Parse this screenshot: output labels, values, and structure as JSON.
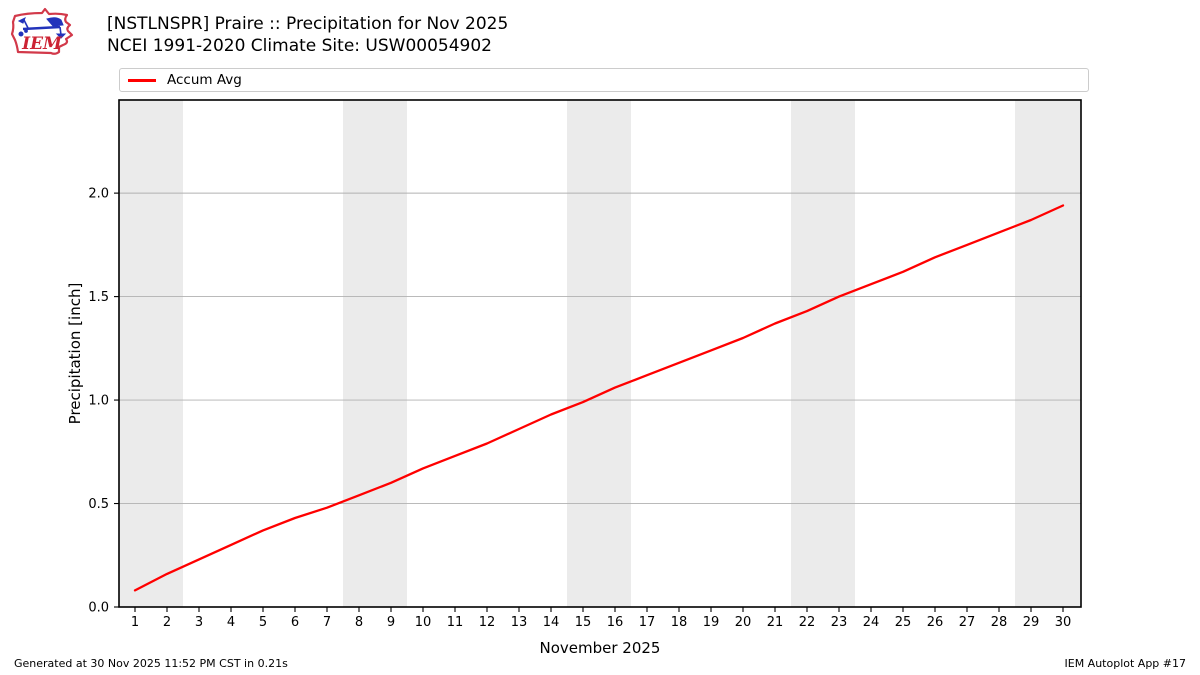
{
  "header": {
    "title_line1": "[NSTLNSPR] Praire :: Precipitation for Nov 2025",
    "title_line2": "NCEI 1991-2020 Climate Site: USW00054902",
    "logo_text": "IEM"
  },
  "legend": {
    "label": "Accum Avg",
    "line_color": "#ff0000"
  },
  "footer": {
    "left": "Generated at 30 Nov 2025 11:52 PM CST in 0.21s",
    "right": "IEM Autoplot App #17"
  },
  "chart_data": {
    "type": "line",
    "title": "[NSTLNSPR] Praire :: Precipitation for Nov 2025 — NCEI 1991-2020 Climate Site: USW00054902",
    "xlabel": "November 2025",
    "ylabel": "Precipitation [inch]",
    "x": [
      1,
      2,
      3,
      4,
      5,
      6,
      7,
      8,
      9,
      10,
      11,
      12,
      13,
      14,
      15,
      16,
      17,
      18,
      19,
      20,
      21,
      22,
      23,
      24,
      25,
      26,
      27,
      28,
      29,
      30
    ],
    "series": [
      {
        "name": "Accum Avg",
        "color": "#ff0000",
        "values": [
          0.08,
          0.16,
          0.23,
          0.3,
          0.37,
          0.43,
          0.48,
          0.54,
          0.6,
          0.67,
          0.73,
          0.79,
          0.86,
          0.93,
          0.99,
          1.06,
          1.12,
          1.18,
          1.24,
          1.3,
          1.37,
          1.43,
          1.5,
          1.56,
          1.62,
          1.69,
          1.75,
          1.81,
          1.87,
          1.94
        ]
      }
    ],
    "xlim": [
      0.5,
      30.5625
    ],
    "ylim": [
      0,
      2.45
    ],
    "yticks": [
      0.0,
      0.5,
      1.0,
      1.5,
      2.0
    ],
    "ytick_labels": [
      "0.0",
      "0.5",
      "1.0",
      "1.5",
      "2.0"
    ],
    "xticks": [
      1,
      2,
      3,
      4,
      5,
      6,
      7,
      8,
      9,
      10,
      11,
      12,
      13,
      14,
      15,
      16,
      17,
      18,
      19,
      20,
      21,
      22,
      23,
      24,
      25,
      26,
      27,
      28,
      29,
      30
    ],
    "grid": "horizontal",
    "grid_color": "#b0b0b0",
    "weekend_bands": [
      [
        0.5,
        2.5
      ],
      [
        7.5,
        9.5
      ],
      [
        14.5,
        16.5
      ],
      [
        21.5,
        23.5
      ],
      [
        28.5,
        30.5625
      ]
    ],
    "band_color": "#ebebeb",
    "legend_position": "top",
    "axis_color": "#000000"
  }
}
